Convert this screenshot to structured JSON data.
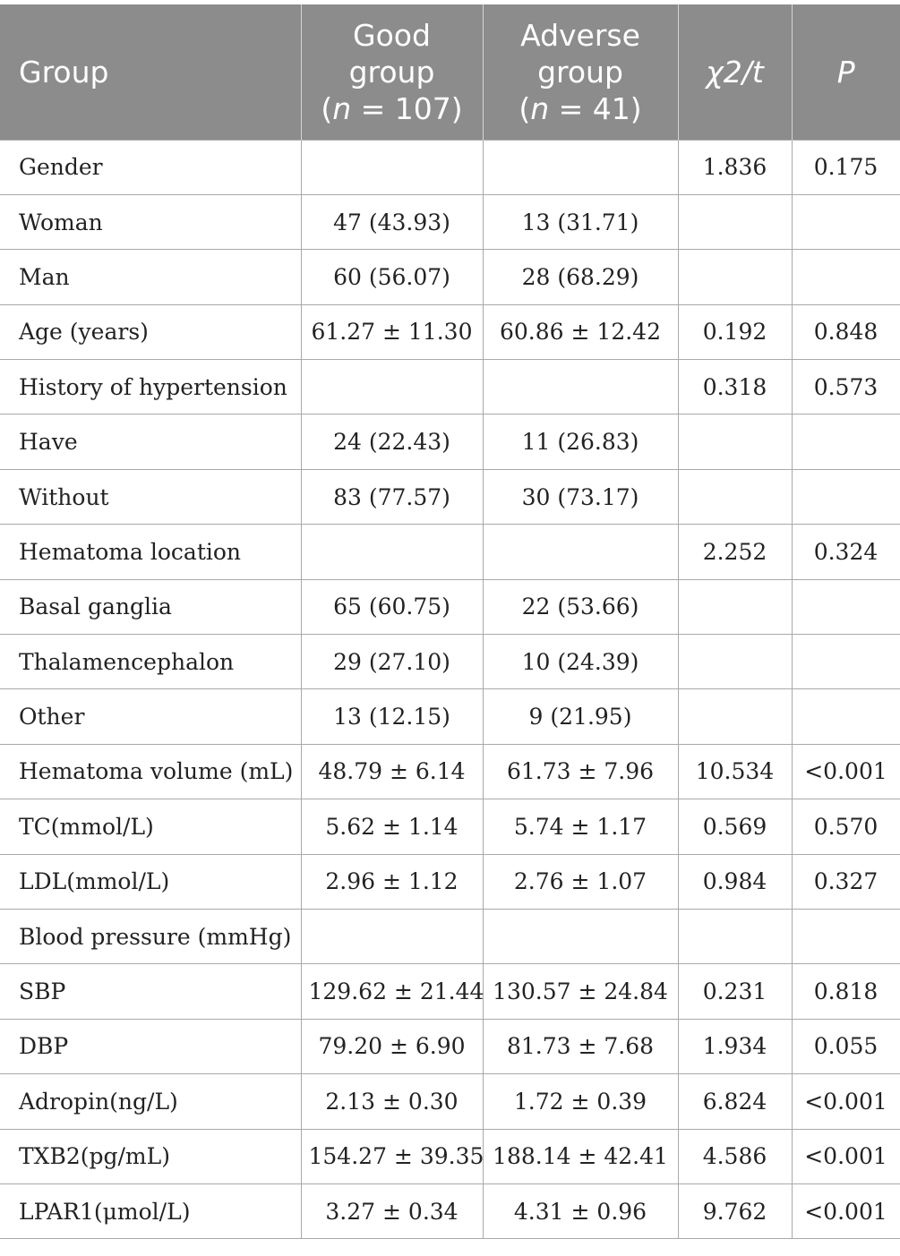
{
  "table": {
    "headers": {
      "group": "Group",
      "good": {
        "line1": "Good",
        "line2": "group",
        "n_open": "(",
        "n_var": "n",
        "n_val": " = 107)"
      },
      "adverse": {
        "line1": "Adverse",
        "line2": "group",
        "n_open": "(",
        "n_var": "n",
        "n_val": " = 41)"
      },
      "stat": "χ2/t",
      "p": "P"
    },
    "rows": [
      {
        "label": "Gender",
        "good": "",
        "adverse": "",
        "stat": "1.836",
        "p": "0.175"
      },
      {
        "label": "Woman",
        "good": "47 (43.93)",
        "adverse": "13 (31.71)",
        "stat": "",
        "p": ""
      },
      {
        "label": "Man",
        "good": "60 (56.07)",
        "adverse": "28 (68.29)",
        "stat": "",
        "p": ""
      },
      {
        "label": "Age (years)",
        "good": "61.27 ± 11.30",
        "adverse": "60.86 ± 12.42",
        "stat": "0.192",
        "p": "0.848"
      },
      {
        "label": "History of hypertension",
        "good": "",
        "adverse": "",
        "stat": "0.318",
        "p": "0.573"
      },
      {
        "label": "Have",
        "good": "24 (22.43)",
        "adverse": "11 (26.83)",
        "stat": "",
        "p": ""
      },
      {
        "label": "Without",
        "good": "83 (77.57)",
        "adverse": "30 (73.17)",
        "stat": "",
        "p": ""
      },
      {
        "label": "Hematoma location",
        "good": "",
        "adverse": "",
        "stat": "2.252",
        "p": "0.324"
      },
      {
        "label": "Basal ganglia",
        "good": "65 (60.75)",
        "adverse": "22 (53.66)",
        "stat": "",
        "p": ""
      },
      {
        "label": "Thalamencephalon",
        "good": "29 (27.10)",
        "adverse": "10 (24.39)",
        "stat": "",
        "p": ""
      },
      {
        "label": "Other",
        "good": "13 (12.15)",
        "adverse": "9 (21.95)",
        "stat": "",
        "p": ""
      },
      {
        "label": "Hematoma volume (mL)",
        "good": "48.79 ± 6.14",
        "adverse": "61.73 ± 7.96",
        "stat": "10.534",
        "p": "<0.001"
      },
      {
        "label": "TC(mmol/L)",
        "good": "5.62 ± 1.14",
        "adverse": "5.74 ± 1.17",
        "stat": "0.569",
        "p": "0.570"
      },
      {
        "label": "LDL(mmol/L)",
        "good": "2.96 ± 1.12",
        "adverse": "2.76 ± 1.07",
        "stat": "0.984",
        "p": "0.327"
      },
      {
        "label": "Blood pressure (mmHg)",
        "good": "",
        "adverse": "",
        "stat": "",
        "p": ""
      },
      {
        "label": "SBP",
        "good": "129.62 ± 21.44",
        "adverse": "130.57 ± 24.84",
        "stat": "0.231",
        "p": "0.818"
      },
      {
        "label": "DBP",
        "good": "79.20 ± 6.90",
        "adverse": "81.73 ± 7.68",
        "stat": "1.934",
        "p": "0.055"
      },
      {
        "label": "Adropin(ng/L)",
        "good": "2.13 ± 0.30",
        "adverse": "1.72 ± 0.39",
        "stat": "6.824",
        "p": "<0.001"
      },
      {
        "label": "TXB2(pg/mL)",
        "good": "154.27 ± 39.35",
        "adverse": "188.14 ± 42.41",
        "stat": "4.586",
        "p": "<0.001"
      },
      {
        "label": "LPAR1(μmol/L)",
        "good": "3.27 ± 0.34",
        "adverse": "4.31 ± 0.96",
        "stat": "9.762",
        "p": "<0.001"
      }
    ]
  }
}
